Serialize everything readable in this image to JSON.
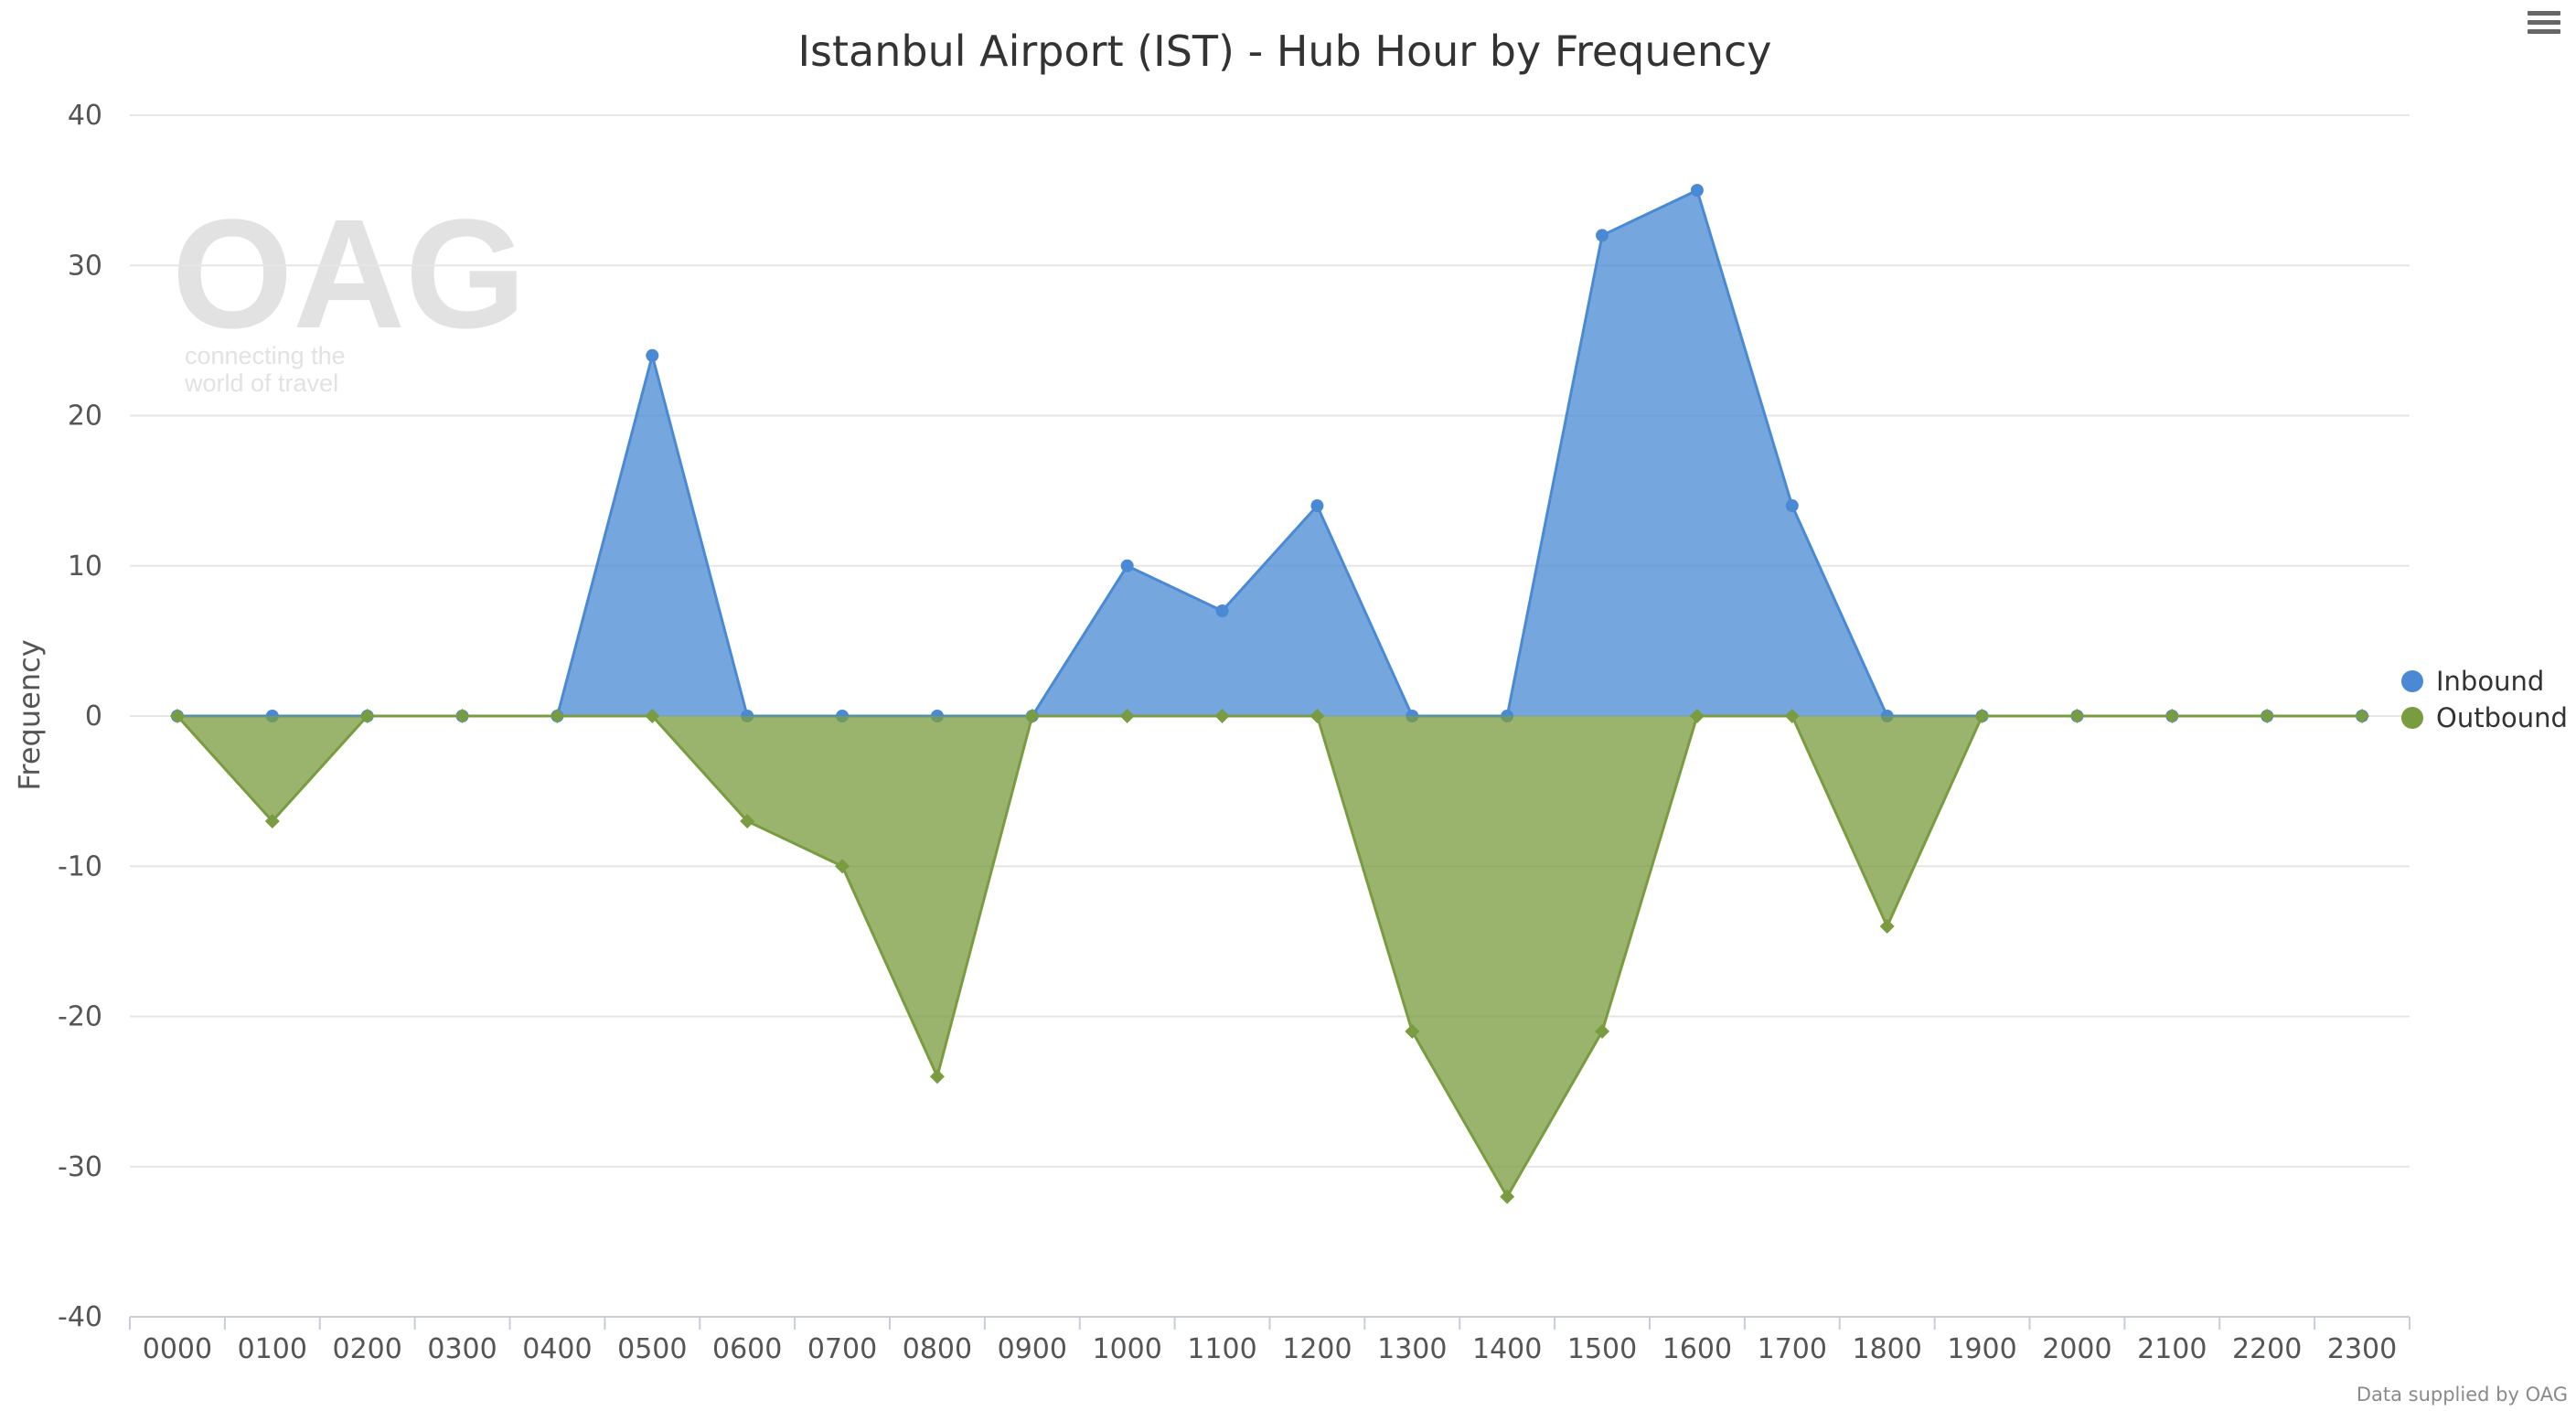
{
  "chart_data": {
    "type": "area",
    "title": "Istanbul Airport (IST) - Hub Hour by Frequency",
    "xlabel": "",
    "ylabel": "Frequency",
    "ylim": [
      -40,
      40
    ],
    "yticks": [
      "40",
      "30",
      "20",
      "10",
      "0",
      "-10",
      "-20",
      "-30",
      "-40"
    ],
    "categories": [
      "0000",
      "0100",
      "0200",
      "0300",
      "0400",
      "0500",
      "0600",
      "0700",
      "0800",
      "0900",
      "1000",
      "1100",
      "1200",
      "1300",
      "1400",
      "1500",
      "1600",
      "1700",
      "1800",
      "1900",
      "2000",
      "2100",
      "2200",
      "2300"
    ],
    "series": [
      {
        "name": "Inbound",
        "color": "#4a8ad4",
        "values": [
          0,
          0,
          0,
          0,
          0,
          24,
          0,
          0,
          0,
          0,
          10,
          7,
          14,
          0,
          0,
          32,
          35,
          14,
          0,
          0,
          0,
          0,
          0,
          0
        ]
      },
      {
        "name": "Outbound",
        "color": "#7a9c40",
        "values": [
          0,
          -7,
          0,
          0,
          0,
          0,
          -7,
          -10,
          -24,
          0,
          0,
          0,
          0,
          -21,
          -32,
          -21,
          0,
          0,
          -14,
          0,
          0,
          0,
          0,
          0
        ]
      }
    ],
    "grid": true,
    "legend_position": "right"
  },
  "watermark": {
    "brand": "OAG",
    "tagline_line1": "connecting the",
    "tagline_line2": "world of travel"
  },
  "credit": "Data supplied by OAG",
  "menu_icon": "hamburger-menu-icon"
}
